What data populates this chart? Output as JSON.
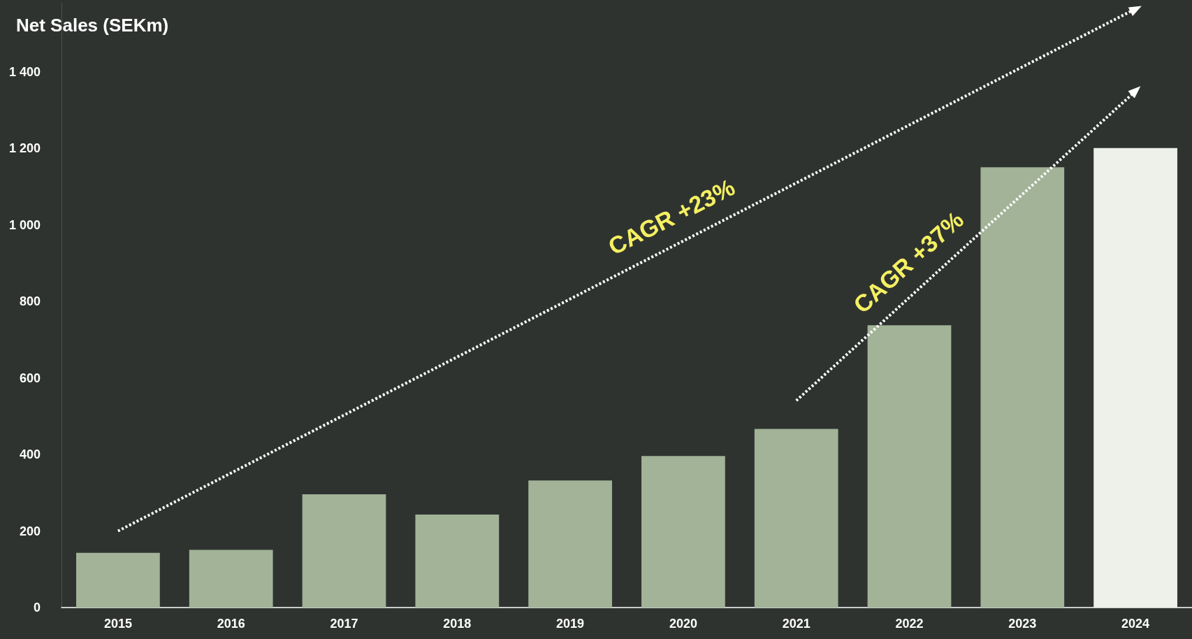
{
  "chart_data": {
    "type": "bar",
    "title": "Net Sales (SEKm)",
    "categories": [
      "2015",
      "2016",
      "2017",
      "2018",
      "2019",
      "2020",
      "2021",
      "2022",
      "2023",
      "2024"
    ],
    "series": [
      {
        "values": [
          143,
          151,
          296,
          243,
          332,
          396,
          467,
          738,
          1151,
          1201
        ],
        "colors": [
          "#a2b398",
          "#a2b398",
          "#a2b398",
          "#a2b398",
          "#a2b398",
          "#a2b398",
          "#a2b398",
          "#a2b398",
          "#a2b398",
          "#eef0ea"
        ]
      },
      {
        "type": "line",
        "values": [
          200,
          null,
          null,
          null,
          null,
          null,
          null,
          null,
          null,
          1565
        ],
        "color": "#ffffff",
        "line_style": "dotted"
      },
      {
        "type": "line",
        "values": [
          null,
          null,
          null,
          null,
          null,
          null,
          541,
          null,
          null,
          1350
        ],
        "color": "#ffffff",
        "line_style": "dotted"
      }
    ],
    "ylim": [
      0,
      1580
    ],
    "yticks": [
      0,
      200,
      400,
      600,
      800,
      {
        "value": 1000,
        "label": "1 000"
      },
      {
        "value": 1200,
        "label": "1 200"
      },
      {
        "value": 1400,
        "label": "1 400"
      }
    ],
    "grid": false,
    "annotations": [
      "CAGR +23%",
      "CAGR +37%"
    ]
  }
}
